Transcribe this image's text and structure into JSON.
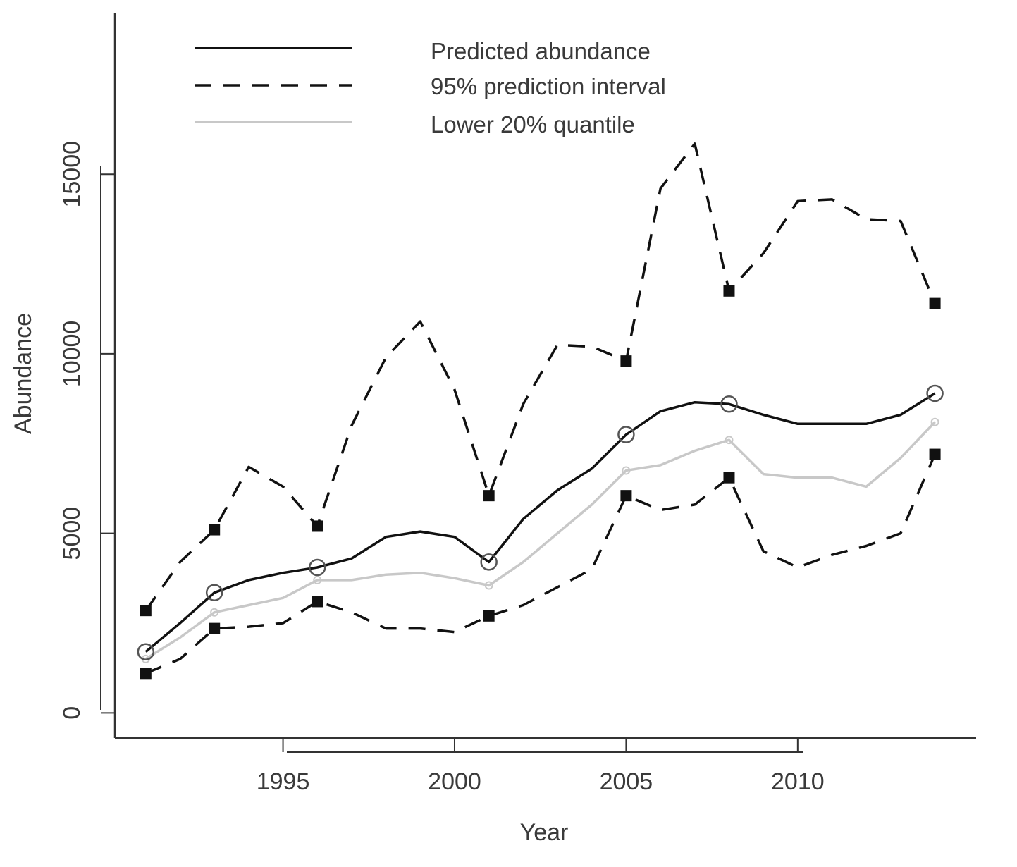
{
  "chart_data": {
    "type": "line",
    "xlabel": "Year",
    "ylabel": "Abundance",
    "xlim": [
      1990.1,
      2015.2
    ],
    "ylim": [
      -700,
      19500
    ],
    "x_ticks": [
      1995,
      2000,
      2005,
      2010
    ],
    "y_ticks": [
      0,
      5000,
      10000,
      15000
    ],
    "grid": false,
    "legend_position": "top-left",
    "colors": {
      "predicted": "#111111",
      "interval": "#111111",
      "quantile": "#c8c8c8"
    },
    "series": [
      {
        "name": "Predicted abundance",
        "style": "solid",
        "x": [
          1991,
          1992,
          1993,
          1994,
          1995,
          1996,
          1997,
          1998,
          1999,
          2000,
          2001,
          2002,
          2003,
          2004,
          2005,
          2006,
          2007,
          2008,
          2009,
          2010,
          2011,
          2012,
          2013,
          2014
        ],
        "y": [
          1700,
          2500,
          3350,
          3700,
          3900,
          4050,
          4300,
          4900,
          5050,
          4900,
          4200,
          5400,
          6200,
          6800,
          7750,
          8400,
          8650,
          8600,
          8300,
          8050,
          8050,
          8050,
          8300,
          8900
        ],
        "marker_x": [
          1991,
          1993,
          1996,
          2001,
          2005,
          2008,
          2014
        ],
        "marker_y": [
          1700,
          3350,
          4050,
          4200,
          7750,
          8600,
          8900
        ]
      },
      {
        "name": "95% prediction interval",
        "style": "dashed",
        "x": [
          1991,
          1992,
          1993,
          1994,
          1995,
          1996,
          1997,
          1998,
          1999,
          2000,
          2001,
          2002,
          2003,
          2004,
          2005,
          2006,
          2007,
          2008,
          2009,
          2010,
          2011,
          2012,
          2013,
          2014
        ],
        "y": [
          2850,
          4200,
          5100,
          6850,
          6300,
          5200,
          8000,
          9900,
          10900,
          9000,
          6050,
          8600,
          10250,
          10200,
          9800,
          14600,
          15850,
          11750,
          12800,
          14250,
          14300,
          13750,
          13700,
          11400
        ],
        "marker_x": [
          1991,
          1993,
          1996,
          2001,
          2005,
          2008,
          2014
        ],
        "marker_y": [
          2850,
          5100,
          5200,
          6050,
          9800,
          11750,
          11400
        ]
      },
      {
        "name": "",
        "style": "dashed",
        "x": [
          1991,
          1992,
          1993,
          1994,
          1995,
          1996,
          1997,
          1998,
          1999,
          2000,
          2001,
          2002,
          2003,
          2004,
          2005,
          2006,
          2007,
          2008,
          2009,
          2010,
          2011,
          2012,
          2013,
          2014
        ],
        "y": [
          1100,
          1500,
          2350,
          2400,
          2500,
          3100,
          2800,
          2350,
          2350,
          2250,
          2700,
          3000,
          3500,
          4000,
          6050,
          5650,
          5800,
          6550,
          4500,
          4050,
          4400,
          4650,
          5000,
          7200
        ],
        "marker_x": [
          1991,
          1993,
          1996,
          2001,
          2005,
          2008,
          2014
        ],
        "marker_y": [
          1100,
          2350,
          3100,
          2700,
          6050,
          6550,
          7200
        ]
      },
      {
        "name": "Lower 20% quantile",
        "style": "solid-light",
        "x": [
          1991,
          1992,
          1993,
          1994,
          1995,
          1996,
          1997,
          1998,
          1999,
          2000,
          2001,
          2002,
          2003,
          2004,
          2005,
          2006,
          2007,
          2008,
          2009,
          2010,
          2011,
          2012,
          2013,
          2014
        ],
        "y": [
          1500,
          2100,
          2800,
          3000,
          3200,
          3700,
          3700,
          3850,
          3900,
          3750,
          3550,
          4200,
          5000,
          5800,
          6750,
          6900,
          7300,
          7600,
          6650,
          6550,
          6550,
          6300,
          7100,
          8100
        ],
        "marker_x": [
          1991,
          1993,
          1996,
          2001,
          2005,
          2008,
          2014
        ],
        "marker_y": [
          1500,
          2800,
          3700,
          3550,
          6750,
          7600,
          8100
        ]
      }
    ]
  }
}
